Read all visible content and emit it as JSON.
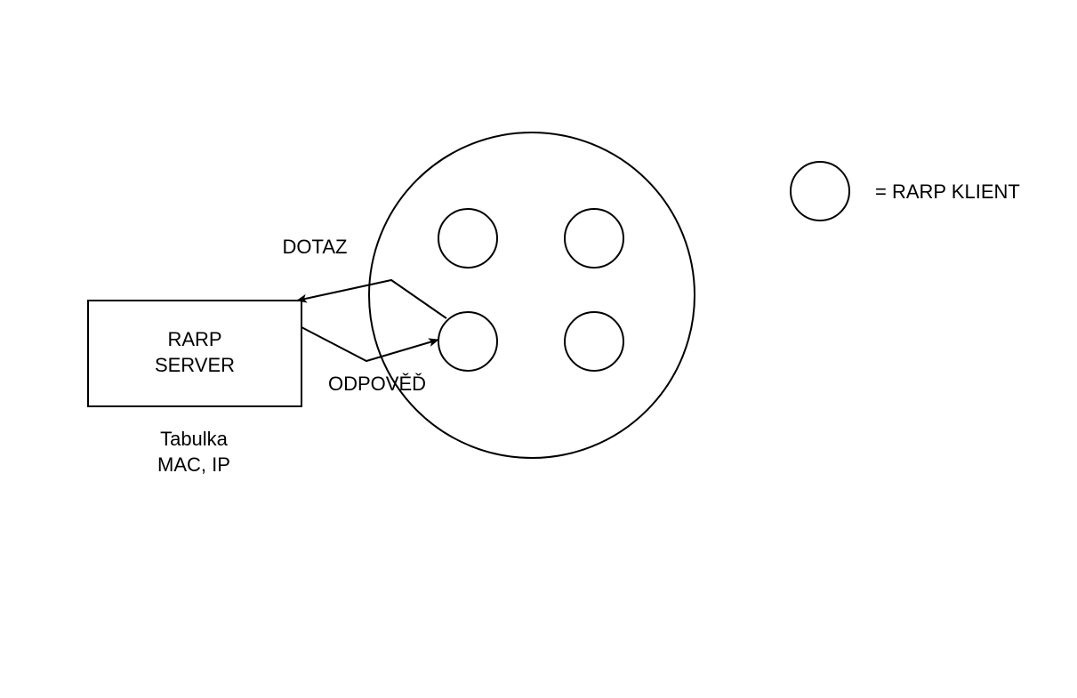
{
  "server": {
    "line1": "RARP",
    "line2": "SERVER"
  },
  "table_note": {
    "line1": "Tabulka",
    "line2": "MAC, IP"
  },
  "labels": {
    "request": "DOTAZ",
    "response": "ODPOVĚĎ"
  },
  "legend": {
    "text": "= RARP KLIENT"
  },
  "colors": {
    "stroke": "#000000",
    "background": "#ffffff"
  }
}
